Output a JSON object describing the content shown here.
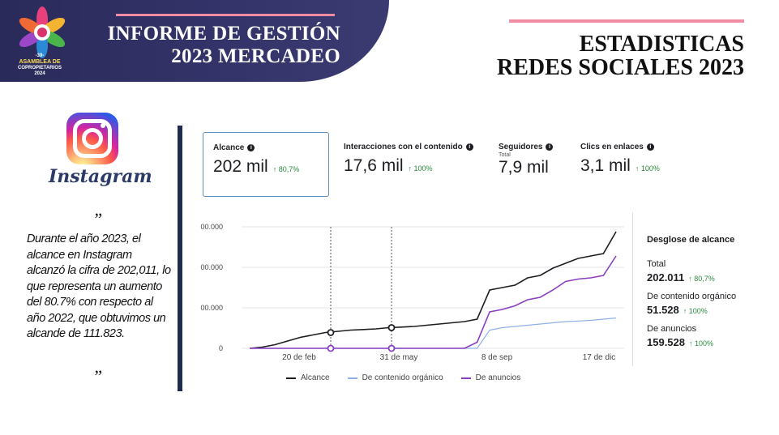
{
  "header": {
    "title_line1": "INFORME DE GESTIÓN",
    "title_line2": "2023 MERCADEO",
    "logo": {
      "line1": "-39-",
      "line2": "ASAMBLEA DE",
      "line3": "COPROPIETARIOS",
      "line4": "2024"
    },
    "right_title_line1": "ESTADISTICAS",
    "right_title_line2": "REDES SOCIALES 2023"
  },
  "instagram": {
    "wordmark": "Instagram",
    "quote_open": "”",
    "quote_close": "”",
    "quote": "Durante el año 2023, el alcance en Instagram alcanzó la cifra de 202,011, lo que representa un aumento del 80.7% con respecto al año 2022, que obtuvimos un alcande de  111.823."
  },
  "metrics": [
    {
      "label": "Alcance",
      "sub": "",
      "value": "202 mil",
      "change": "↑ 80,7%"
    },
    {
      "label": "Interacciones con el contenido",
      "sub": "",
      "value": "17,6 mil",
      "change": "↑ 100%"
    },
    {
      "label": "Seguidores",
      "sub": "Total",
      "value": "7,9 mil",
      "change": ""
    },
    {
      "label": "Clics en enlaces",
      "sub": "",
      "value": "3,1 mil",
      "change": "↑ 100%"
    }
  ],
  "breakdown": {
    "title": "Desglose de alcance",
    "items": [
      {
        "label": "Total",
        "value": "202.011",
        "change": "↑ 80,7%"
      },
      {
        "label": "De contenido orgánico",
        "value": "51.528",
        "change": "↑ 100%"
      },
      {
        "label": "De anuncios",
        "value": "159.528",
        "change": "↑ 100%"
      }
    ]
  },
  "legend": [
    {
      "name": "Alcance",
      "color": "#1c1e21"
    },
    {
      "name": "De contenido orgánico",
      "color": "#8fb0e6"
    },
    {
      "name": "De anuncios",
      "color": "#8a3fc0"
    }
  ],
  "chart_data": {
    "type": "line",
    "x_ticks": [
      "20 de feb",
      "31 de may",
      "8 de sep",
      "17 de dic"
    ],
    "y_ticks": [
      "00.000",
      "00.000",
      "00.000",
      "0"
    ],
    "series": [
      {
        "name": "Alcance",
        "color": "#1c1e21",
        "values": [
          0,
          1,
          3,
          6,
          9,
          11,
          13,
          14,
          15,
          15.5,
          16,
          17,
          17.5,
          18,
          19,
          20,
          21,
          22,
          24,
          48,
          50,
          52,
          58,
          60,
          66,
          70,
          74,
          76,
          78,
          96
        ]
      },
      {
        "name": "De contenido orgánico",
        "color": "#8fb0e6",
        "values": [
          0,
          0,
          0,
          0,
          0,
          0,
          0,
          0,
          0,
          0,
          0,
          0,
          0,
          0,
          0,
          0,
          0,
          0,
          0,
          15,
          17,
          18,
          19,
          20,
          21,
          22,
          22.5,
          23,
          24,
          25
        ]
      },
      {
        "name": "De anuncios",
        "color": "#8a3fc0",
        "values": [
          0,
          0,
          0,
          0,
          0,
          0,
          0,
          0,
          0,
          0,
          0,
          0,
          0,
          0,
          0,
          0,
          0,
          0,
          5,
          30,
          32,
          35,
          40,
          42,
          48,
          55,
          57,
          58,
          60,
          76
        ]
      }
    ],
    "ylim": [
      0,
      100
    ]
  }
}
